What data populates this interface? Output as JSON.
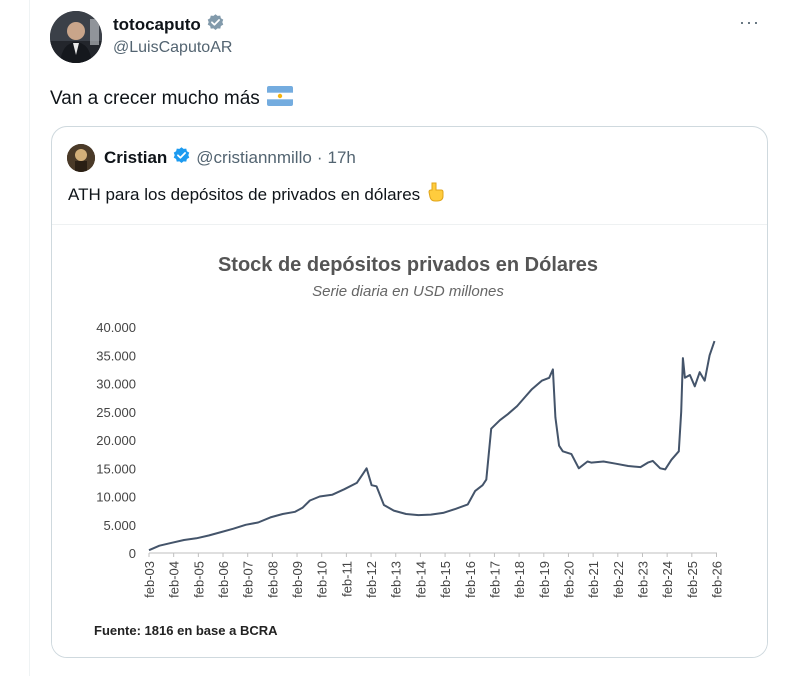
{
  "tweet": {
    "display_name": "totocaputo",
    "handle": "@LuisCaputoAR",
    "text": "Van a crecer mucho más",
    "more_label": "···"
  },
  "quote": {
    "display_name": "Cristian",
    "handle": "@cristiannmillo",
    "separator": "·",
    "time": "17h",
    "text": "ATH para los depósitos de privados en dólares"
  },
  "colors": {
    "verified_main": "#829aab",
    "verified_quote": "#1d9bf0",
    "line": "#44546a"
  },
  "chart_data": {
    "type": "line",
    "title": "Stock de depósitos privados en Dólares",
    "subtitle": "Serie diaria en USD millones",
    "source": "Fuente: 1816 en base a BCRA",
    "ylim": [
      0,
      40000
    ],
    "y_ticks": [
      0,
      5000,
      10000,
      15000,
      20000,
      25000,
      30000,
      35000,
      40000
    ],
    "y_tick_labels": [
      "0",
      "5.000",
      "10.000",
      "15.000",
      "20.000",
      "25.000",
      "30.000",
      "35.000",
      "40.000"
    ],
    "x_tick_labels": [
      "feb-03",
      "feb-04",
      "feb-05",
      "feb-06",
      "feb-07",
      "feb-08",
      "feb-09",
      "feb-10",
      "feb-11",
      "feb-12",
      "feb-13",
      "feb-14",
      "feb-15",
      "feb-16",
      "feb-17",
      "feb-18",
      "feb-19",
      "feb-20",
      "feb-21",
      "feb-22",
      "feb-23",
      "feb-24",
      "feb-25",
      "feb-26"
    ],
    "xlim": [
      2003.08,
      2026.1
    ],
    "grid": false,
    "series": [
      {
        "x": [
          2003.08,
          2003.5,
          2004.0,
          2004.5,
          2005.0,
          2005.5,
          2006.0,
          2006.5,
          2007.0,
          2007.5,
          2008.0,
          2008.5,
          2009.0,
          2009.3,
          2009.6,
          2010.0,
          2010.5,
          2011.0,
          2011.5,
          2011.75,
          2011.9,
          2012.1,
          2012.3,
          2012.6,
          2013.0,
          2013.5,
          2014.0,
          2014.5,
          2015.0,
          2015.5,
          2016.0,
          2016.3,
          2016.6,
          2016.75,
          2016.95,
          2017.3,
          2017.6,
          2018.0,
          2018.3,
          2018.6,
          2019.0,
          2019.3,
          2019.45,
          2019.55,
          2019.7,
          2019.85,
          2020.2,
          2020.5,
          2020.85,
          2021.0,
          2021.5,
          2022.0,
          2022.5,
          2023.0,
          2023.3,
          2023.5,
          2023.8,
          2024.0,
          2024.25,
          2024.55,
          2024.65,
          2024.72,
          2024.8,
          2025.0,
          2025.2,
          2025.4,
          2025.6,
          2025.8,
          2026.0
        ],
        "values": [
          500,
          1300,
          1800,
          2300,
          2600,
          3100,
          3700,
          4300,
          5000,
          5400,
          6300,
          6900,
          7300,
          8000,
          9300,
          10000,
          10300,
          11300,
          12400,
          14000,
          15000,
          12000,
          11800,
          8500,
          7500,
          6900,
          6700,
          6800,
          7100,
          7800,
          8600,
          11000,
          12000,
          13000,
          22000,
          23500,
          24500,
          26000,
          27500,
          29000,
          30500,
          31000,
          32500,
          24000,
          19000,
          18000,
          17500,
          15000,
          16200,
          16000,
          16200,
          15800,
          15400,
          15200,
          16000,
          16300,
          15000,
          14800,
          16500,
          18000,
          25000,
          34500,
          31000,
          31500,
          29500,
          32000,
          30500,
          35000,
          37500
        ]
      }
    ]
  }
}
